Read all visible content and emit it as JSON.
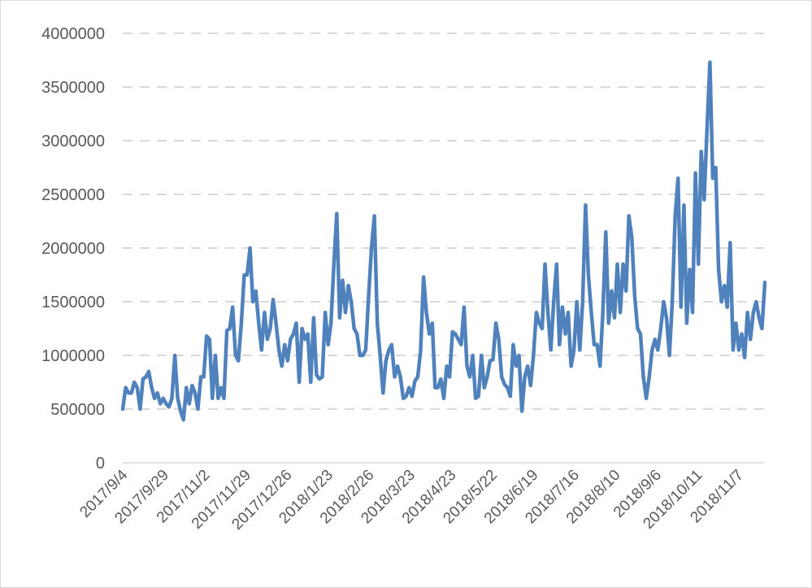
{
  "chart_data": {
    "type": "line",
    "title": "",
    "xlabel": "",
    "ylabel": "",
    "ylim": [
      0,
      4000000
    ],
    "y_ticks": [
      0,
      500000,
      1000000,
      1500000,
      2000000,
      2500000,
      3000000,
      3500000,
      4000000
    ],
    "y_tick_labels": [
      "0",
      "500000",
      "1000000",
      "1500000",
      "2000000",
      "2500000",
      "3000000",
      "3500000",
      "4000000"
    ],
    "x_tick_labels": [
      "2017/9/4",
      "2017/9/29",
      "2017/11/2",
      "2017/11/29",
      "2017/12/26",
      "2018/1/23",
      "2018/2/26",
      "2018/3/23",
      "2018/4/23",
      "2018/5/22",
      "2018/6/19",
      "2018/7/16",
      "2018/8/10",
      "2018/9/6",
      "2018/10/11",
      "2018/11/7"
    ],
    "grid": "horizontal-dashed",
    "legend": "none",
    "series": [
      {
        "name": "series-1",
        "color": "#4f81bd",
        "values": [
          500000,
          700000,
          650000,
          650000,
          750000,
          700000,
          500000,
          780000,
          800000,
          850000,
          700000,
          600000,
          650000,
          550000,
          600000,
          550000,
          520000,
          600000,
          1000000,
          600000,
          480000,
          400000,
          700000,
          550000,
          720000,
          650000,
          500000,
          800000,
          800000,
          1180000,
          1150000,
          600000,
          1000000,
          600000,
          700000,
          600000,
          1230000,
          1250000,
          1450000,
          1000000,
          950000,
          1300000,
          1750000,
          1750000,
          2000000,
          1500000,
          1600000,
          1300000,
          1050000,
          1400000,
          1150000,
          1250000,
          1520000,
          1300000,
          1050000,
          900000,
          1100000,
          950000,
          1150000,
          1200000,
          1300000,
          750000,
          1250000,
          1150000,
          1200000,
          750000,
          1350000,
          820000,
          780000,
          800000,
          1400000,
          1100000,
          1300000,
          1850000,
          2320000,
          1350000,
          1700000,
          1400000,
          1650000,
          1500000,
          1250000,
          1200000,
          1000000,
          1000000,
          1050000,
          1550000,
          2000000,
          2300000,
          1300000,
          1000000,
          650000,
          950000,
          1050000,
          1100000,
          800000,
          900000,
          800000,
          600000,
          620000,
          700000,
          620000,
          760000,
          800000,
          1050000,
          1730000,
          1400000,
          1200000,
          1300000,
          700000,
          700000,
          780000,
          600000,
          900000,
          800000,
          1220000,
          1200000,
          1150000,
          1100000,
          1450000,
          900000,
          800000,
          1000000,
          600000,
          620000,
          1000000,
          700000,
          800000,
          950000,
          960000,
          1300000,
          1150000,
          800000,
          730000,
          700000,
          620000,
          1100000,
          900000,
          1000000,
          480000,
          800000,
          900000,
          720000,
          1000000,
          1400000,
          1300000,
          1250000,
          1850000,
          1400000,
          1050000,
          1500000,
          1850000,
          1100000,
          1450000,
          1200000,
          1400000,
          900000,
          1050000,
          1500000,
          1050000,
          1500000,
          2400000,
          1750000,
          1400000,
          1100000,
          1100000,
          900000,
          1400000,
          2150000,
          1300000,
          1600000,
          1350000,
          1850000,
          1400000,
          1850000,
          1600000,
          2300000,
          2100000,
          1550000,
          1250000,
          1200000,
          800000,
          600000,
          800000,
          1050000,
          1150000,
          1050000,
          1250000,
          1500000,
          1350000,
          1000000,
          1500000,
          2300000,
          2650000,
          1450000,
          2400000,
          1300000,
          1800000,
          1400000,
          2700000,
          1850000,
          2900000,
          2450000,
          3100000,
          3730000,
          2650000,
          2750000,
          1800000,
          1500000,
          1650000,
          1450000,
          2050000,
          1050000,
          1300000,
          1050000,
          1200000,
          980000,
          1400000,
          1150000,
          1400000,
          1500000,
          1350000,
          1250000,
          1680000
        ]
      }
    ]
  }
}
